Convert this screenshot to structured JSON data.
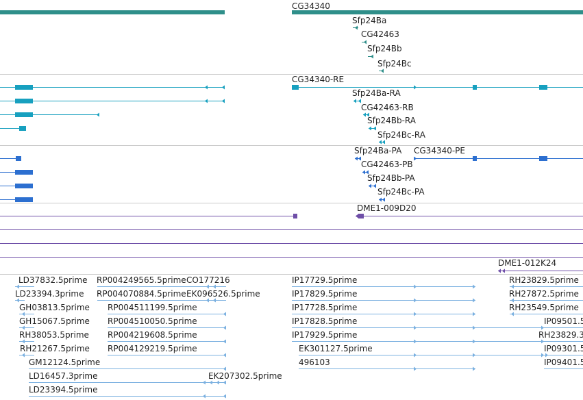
{
  "browser": {
    "view": "genome feature tracks",
    "tracks": [
      {
        "name": "gene-track",
        "color": "#2f8f8a",
        "features": [
          {
            "label": ""
          },
          {
            "label": "CG34340"
          },
          {
            "label": "Sfp24Ba"
          },
          {
            "label": "CG42463"
          },
          {
            "label": "Sfp24Bb"
          },
          {
            "label": "Sfp24Bc"
          }
        ]
      },
      {
        "name": "transcript-track-ra",
        "color": "#17a0bf",
        "features": [
          {
            "label": ""
          },
          {
            "label": ""
          },
          {
            "label": ""
          },
          {
            "label": ""
          },
          {
            "label": "CG34340-RE"
          },
          {
            "label": "Sfp24Ba-RA"
          },
          {
            "label": "CG42463-RB"
          },
          {
            "label": "Sfp24Bb-RA"
          },
          {
            "label": "Sfp24Bc-RA"
          }
        ]
      },
      {
        "name": "protein-track",
        "color": "#2c6fd0",
        "features": [
          {
            "label": ""
          },
          {
            "label": ""
          },
          {
            "label": ""
          },
          {
            "label": ""
          },
          {
            "label": "Sfp24Ba-PA"
          },
          {
            "label": "CG34340-PE"
          },
          {
            "label": "CG42463-PB"
          },
          {
            "label": "Sfp24Bb-PA"
          },
          {
            "label": "Sfp24Bc-PA"
          }
        ]
      },
      {
        "name": "bac-clone-track",
        "color": "#6f4fa8",
        "features": [
          {
            "label": ""
          },
          {
            "label": "DME1-009D20"
          },
          {
            "label": ""
          },
          {
            "label": ""
          },
          {
            "label": ""
          },
          {
            "label": "DME1-012K24"
          }
        ]
      },
      {
        "name": "est-track",
        "color": "#7ab0e0",
        "features": [
          {
            "label": "LD37832.5prime"
          },
          {
            "label": "RP004249565.5prime"
          },
          {
            "label": "CO177216"
          },
          {
            "label": "IP17729.5prime"
          },
          {
            "label": "RH23829.5prime"
          },
          {
            "label": "LD23394.3prime"
          },
          {
            "label": "RP004070884.5prime"
          },
          {
            "label": "EK096526.5prime"
          },
          {
            "label": "IP17829.5prime"
          },
          {
            "label": "RH27872.5prime"
          },
          {
            "label": "GH03813.5prime"
          },
          {
            "label": "RP004511199.5prime"
          },
          {
            "label": "IP17728.5prime"
          },
          {
            "label": "RH23549.5prime"
          },
          {
            "label": "GH15067.5prime"
          },
          {
            "label": "RP004510050.5prime"
          },
          {
            "label": "IP17828.5prime"
          },
          {
            "label": "IP09501.5"
          },
          {
            "label": "RH38053.5prime"
          },
          {
            "label": "RP004219608.5prime"
          },
          {
            "label": "IP17929.5prime"
          },
          {
            "label": "RH23829.3"
          },
          {
            "label": "RH21267.5prime"
          },
          {
            "label": "RP004129219.5prime"
          },
          {
            "label": "EK301127.5prime"
          },
          {
            "label": "IP09301.5"
          },
          {
            "label": "GM12124.5prime"
          },
          {
            "label": "496103"
          },
          {
            "label": "IP09401.5"
          },
          {
            "label": "LD16457.3prime"
          },
          {
            "label": "EK207302.5prime"
          },
          {
            "label": "LD23394.5prime"
          }
        ]
      }
    ]
  }
}
